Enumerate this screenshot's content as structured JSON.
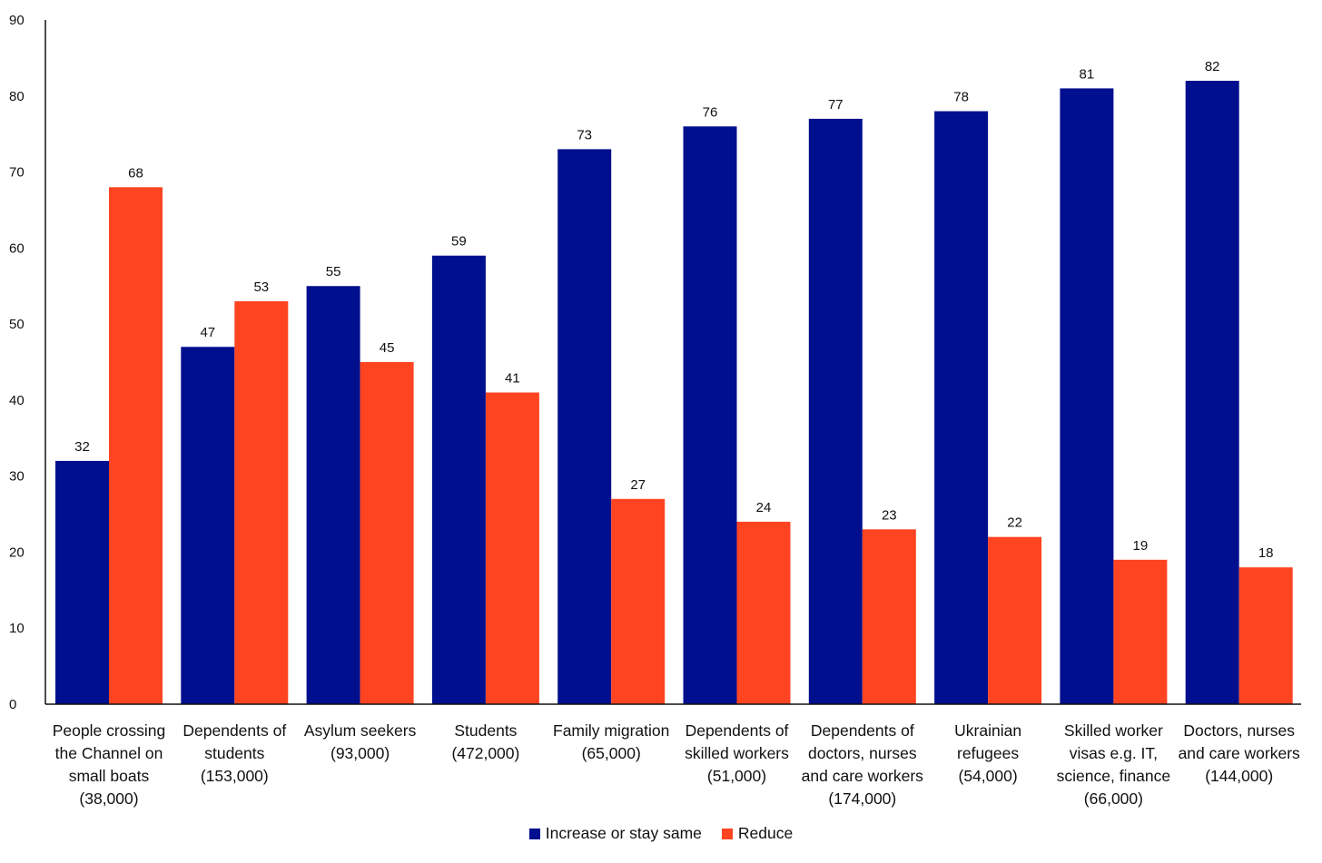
{
  "chart_data": {
    "type": "bar",
    "title": "",
    "xlabel": "",
    "ylabel": "",
    "ylim": [
      0,
      90
    ],
    "yticks": [
      0,
      10,
      20,
      30,
      40,
      50,
      60,
      70,
      80,
      90
    ],
    "grid": false,
    "legend_position": "bottom-center",
    "categories": [
      [
        "People crossing",
        "the Channel on",
        "small boats",
        "(38,000)"
      ],
      [
        "Dependents of",
        "students",
        "(153,000)"
      ],
      [
        "Asylum seekers",
        "(93,000)"
      ],
      [
        "Students",
        "(472,000)"
      ],
      [
        "Family migration",
        "(65,000)"
      ],
      [
        "Dependents of",
        "skilled workers",
        "(51,000)"
      ],
      [
        "Dependents of",
        "doctors, nurses",
        "and care workers",
        "(174,000)"
      ],
      [
        "Ukrainian",
        "refugees",
        "(54,000)"
      ],
      [
        "Skilled worker",
        "visas e.g. IT,",
        "science, finance",
        "(66,000)"
      ],
      [
        "Doctors, nurses",
        "and care workers",
        "(144,000)"
      ]
    ],
    "series": [
      {
        "name": "Increase or stay same",
        "color": "#000f8e",
        "values": [
          32,
          47,
          55,
          59,
          73,
          76,
          77,
          78,
          81,
          82
        ]
      },
      {
        "name": "Reduce",
        "color": "#ff4422",
        "values": [
          68,
          53,
          45,
          41,
          27,
          24,
          23,
          22,
          19,
          18
        ]
      }
    ]
  }
}
